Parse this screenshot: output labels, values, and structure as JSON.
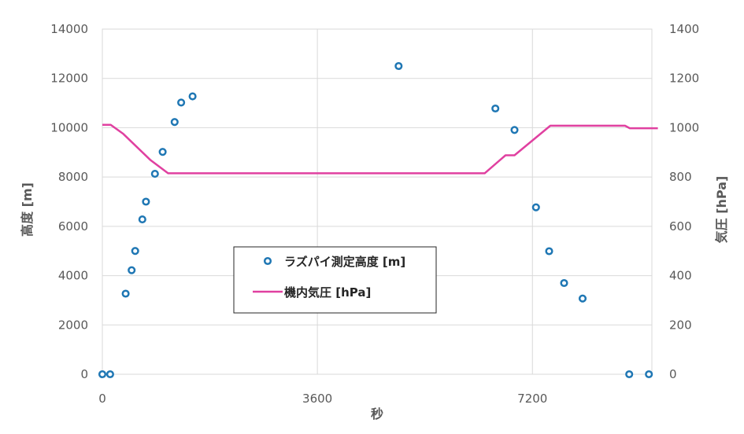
{
  "chart_data": {
    "type": "scatter",
    "x": {
      "label": "秒",
      "range": [
        0,
        9200
      ],
      "ticks": [
        0,
        3600,
        7200
      ],
      "tick_labels": [
        "0",
        "3600",
        "7200"
      ]
    },
    "y_left": {
      "label": "高度 [m]",
      "range": [
        0,
        14000
      ],
      "ticks": [
        0,
        2000,
        4000,
        6000,
        8000,
        10000,
        12000,
        14000
      ],
      "tick_labels": [
        "0",
        "2000",
        "4000",
        "6000",
        "8000",
        "10000",
        "12000",
        "14000"
      ]
    },
    "y_right": {
      "label": "気圧 [hPa]",
      "range": [
        0,
        1400
      ],
      "ticks": [
        0,
        200,
        400,
        600,
        800,
        1000,
        1200,
        1400
      ],
      "tick_labels": [
        "0",
        "200",
        "400",
        "600",
        "800",
        "1000",
        "1200",
        "1400"
      ]
    },
    "grid": true,
    "legend_position": "center",
    "series": [
      {
        "name": "ラズパイ測定高度 [m]",
        "kind": "scatter",
        "axis": "left",
        "color": "#1f77b4",
        "points": [
          [
            0,
            0
          ],
          [
            130,
            0
          ],
          [
            390,
            3270
          ],
          [
            490,
            4220
          ],
          [
            550,
            5000
          ],
          [
            670,
            6280
          ],
          [
            730,
            7000
          ],
          [
            880,
            8130
          ],
          [
            1010,
            9020
          ],
          [
            1210,
            10230
          ],
          [
            1320,
            11020
          ],
          [
            1510,
            11270
          ],
          [
            4960,
            12500
          ],
          [
            6580,
            10780
          ],
          [
            6900,
            9910
          ],
          [
            7260,
            6770
          ],
          [
            7480,
            4990
          ],
          [
            7730,
            3700
          ],
          [
            8040,
            3070
          ],
          [
            8820,
            0
          ],
          [
            9150,
            0
          ]
        ]
      },
      {
        "name": "機内気圧 [hPa]",
        "kind": "line",
        "axis": "right",
        "color": "#e040a0",
        "points": [
          [
            0,
            1012
          ],
          [
            140,
            1012
          ],
          [
            350,
            975
          ],
          [
            800,
            870
          ],
          [
            1100,
            815
          ],
          [
            6400,
            815
          ],
          [
            6750,
            888
          ],
          [
            6900,
            888
          ],
          [
            7500,
            1008
          ],
          [
            8750,
            1008
          ],
          [
            8830,
            998
          ],
          [
            9300,
            998
          ]
        ]
      }
    ]
  }
}
